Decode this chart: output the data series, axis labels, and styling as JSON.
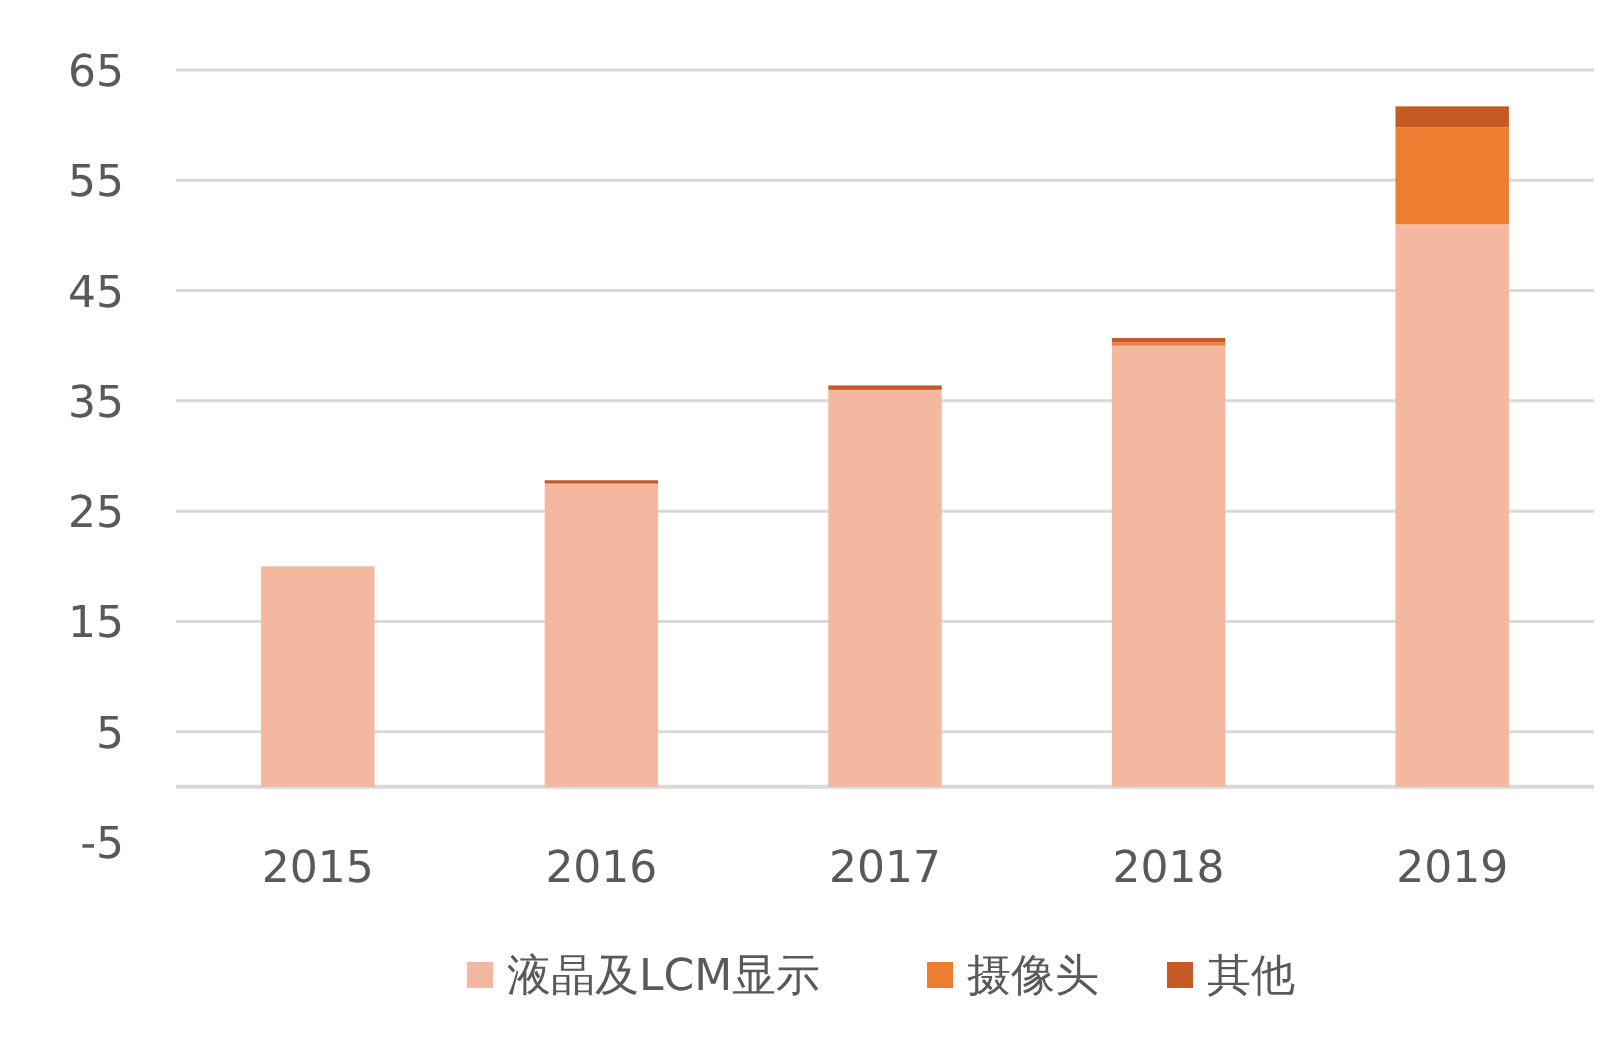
{
  "chart_data": {
    "type": "bar",
    "stacked": true,
    "categories": [
      "2015",
      "2016",
      "2017",
      "2018",
      "2019"
    ],
    "series": [
      {
        "name": "液晶及LCM显示",
        "color": "#f4b8a0",
        "values": [
          20.0,
          27.5,
          36.0,
          40.0,
          51.0
        ]
      },
      {
        "name": "摄像头",
        "color": "#ed7d31",
        "values": [
          0,
          0,
          0,
          0.3,
          8.8
        ]
      },
      {
        "name": "其他",
        "color": "#c55a24",
        "values": [
          0,
          0.3,
          0.4,
          0.4,
          1.9
        ]
      }
    ],
    "ylim": [
      -5,
      65
    ],
    "yticks": [
      -5,
      5,
      15,
      25,
      35,
      45,
      55,
      65
    ],
    "grid": "y",
    "legend": "bottom"
  }
}
